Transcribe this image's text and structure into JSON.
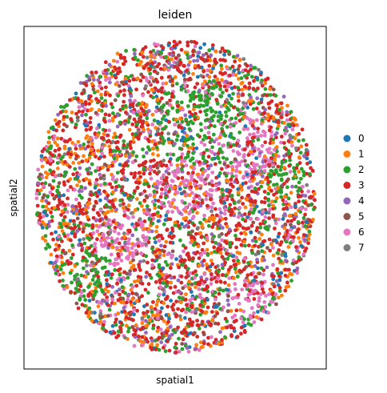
{
  "chart_data": {
    "type": "scatter",
    "title": "leiden",
    "xlabel": "spatial1",
    "ylabel": "spatial2",
    "grid": false,
    "x_ticks": false,
    "y_ticks": false,
    "legend_position": "right",
    "categories": [
      "0",
      "1",
      "2",
      "3",
      "4",
      "5",
      "6",
      "7"
    ],
    "colors": [
      "#1f77b4",
      "#ff7f0e",
      "#2ca02c",
      "#d62728",
      "#9467bd",
      "#8c564b",
      "#e377c2",
      "#7f7f7f"
    ],
    "approx_point_share": [
      0.05,
      0.16,
      0.15,
      0.38,
      0.08,
      0.05,
      0.1,
      0.03
    ],
    "spatial_region": "circle"
  }
}
